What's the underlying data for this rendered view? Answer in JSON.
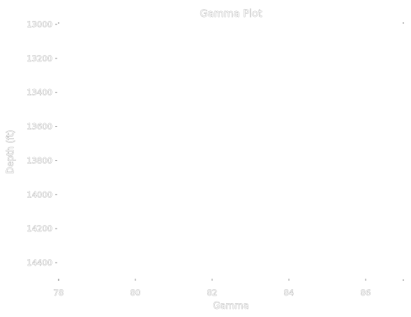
{
  "chart_data": {
    "type": "line",
    "title": "Gamma Plot",
    "xlabel": "Gamma",
    "ylabel": "Depth (ft)",
    "xlim": [
      78,
      87
    ],
    "ylim": [
      14500,
      13000
    ],
    "y_inverted": true,
    "x_ticks": [
      78,
      80,
      82,
      84,
      86
    ],
    "x_tick_labels": [
      "78",
      "80",
      "82",
      "84",
      "86"
    ],
    "y_ticks": [
      13000,
      13200,
      13400,
      13600,
      13800,
      14000,
      14200,
      14400
    ],
    "y_tick_labels": [
      "13000",
      "13200",
      "13400",
      "13600",
      "13800",
      "14000",
      "14200",
      "14400"
    ],
    "grid": false,
    "series": []
  }
}
